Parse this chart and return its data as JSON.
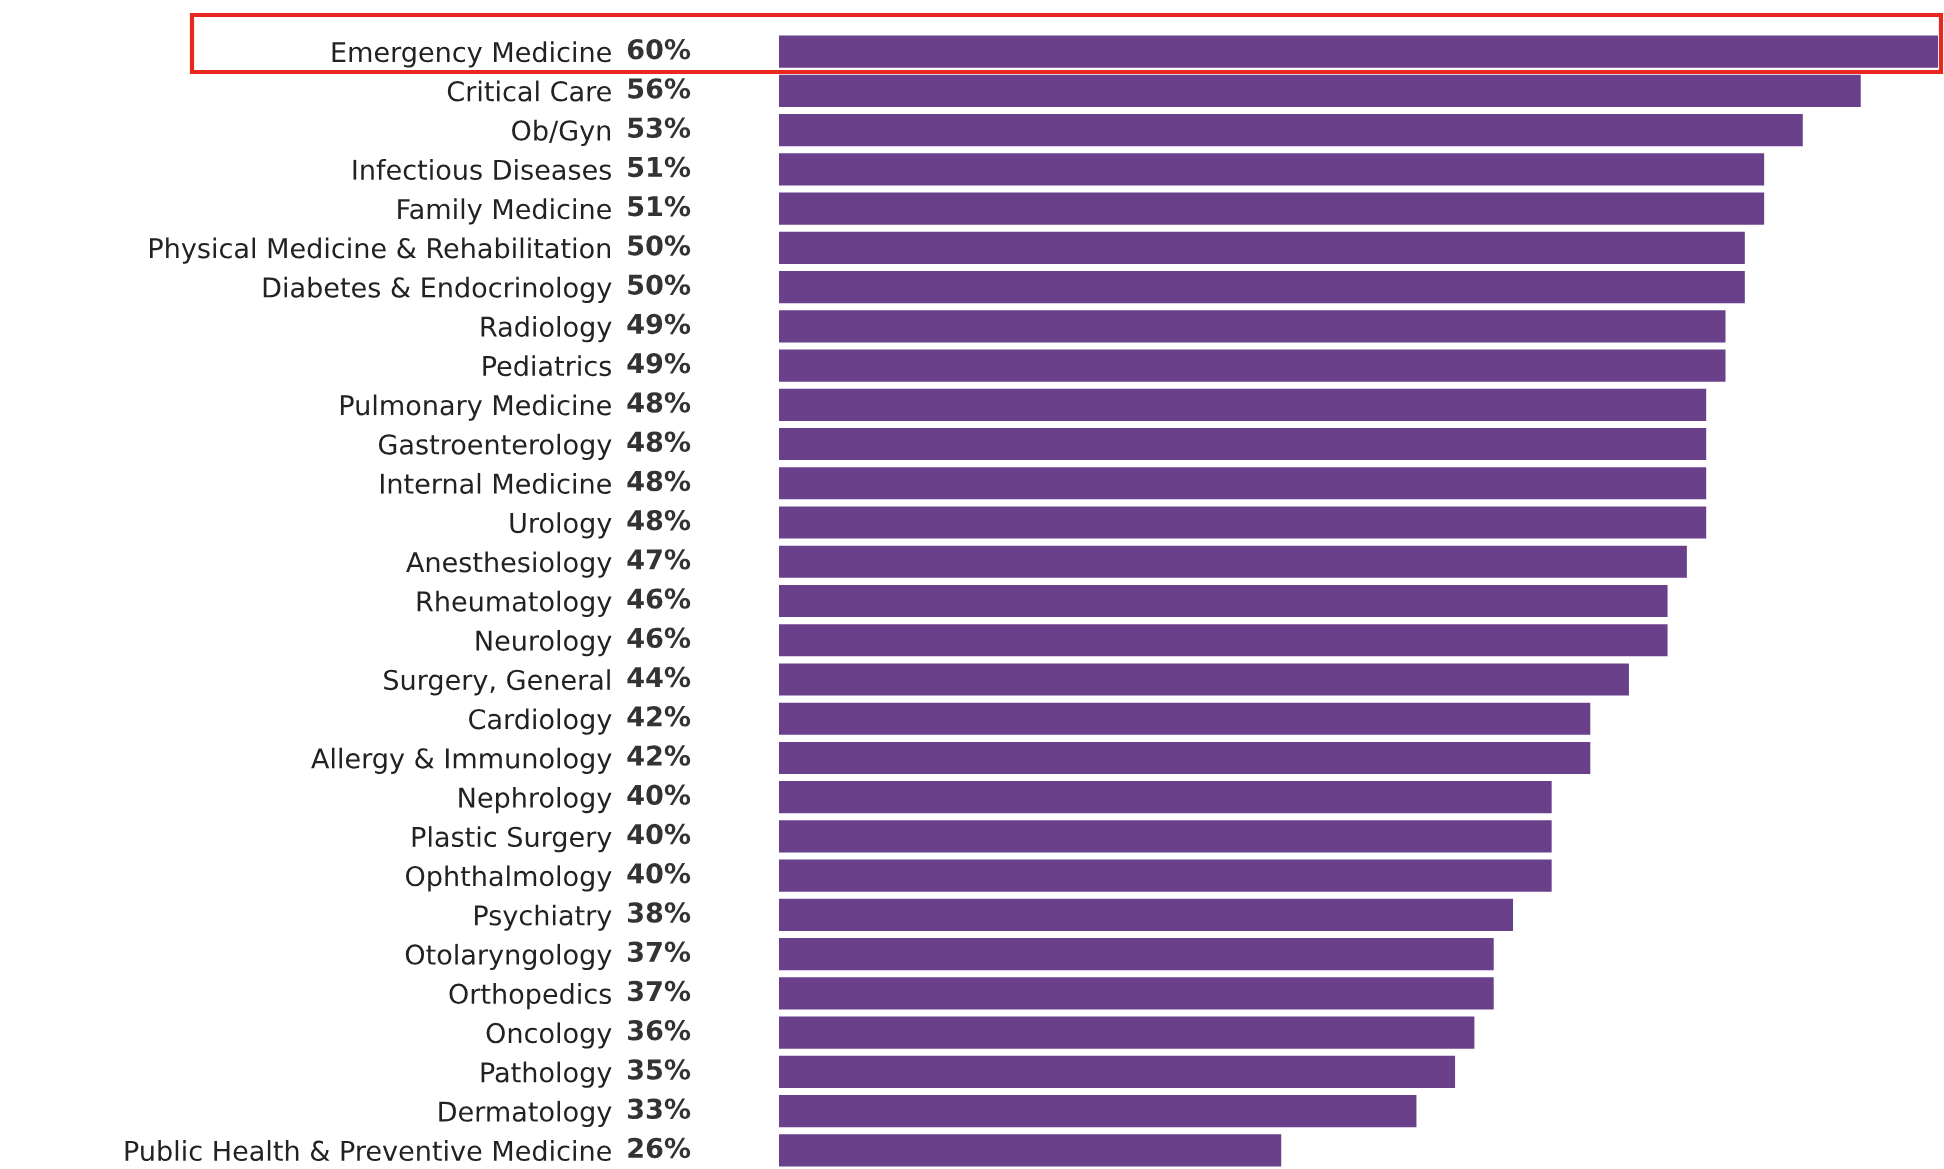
{
  "chart_data": {
    "type": "bar",
    "orientation": "horizontal",
    "categories": [
      "Emergency Medicine",
      "Critical Care",
      "Ob/Gyn",
      "Infectious Diseases",
      "Family Medicine",
      "Physical Medicine & Rehabilitation",
      "Diabetes & Endocrinology",
      "Radiology",
      "Pediatrics",
      "Pulmonary Medicine",
      "Gastroenterology",
      "Internal Medicine",
      "Urology",
      "Anesthesiology",
      "Rheumatology",
      "Neurology",
      "Surgery, General",
      "Cardiology",
      "Allergy & Immunology",
      "Nephrology",
      "Plastic Surgery",
      "Ophthalmology",
      "Psychiatry",
      "Otolaryngology",
      "Orthopedics",
      "Oncology",
      "Pathology",
      "Dermatology",
      "Public Health & Preventive Medicine"
    ],
    "values": [
      60,
      56,
      53,
      51,
      51,
      50,
      50,
      49,
      49,
      48,
      48,
      48,
      48,
      47,
      46,
      46,
      44,
      42,
      42,
      40,
      40,
      40,
      38,
      37,
      37,
      36,
      35,
      33,
      26
    ],
    "value_labels": [
      "60%",
      "56%",
      "53%",
      "51%",
      "51%",
      "50%",
      "50%",
      "49%",
      "49%",
      "48%",
      "48%",
      "48%",
      "48%",
      "47%",
      "46%",
      "46%",
      "44%",
      "42%",
      "42%",
      "40%",
      "40%",
      "40%",
      "38%",
      "37%",
      "37%",
      "36%",
      "35%",
      "33%",
      "26%"
    ],
    "color": "#6b408b",
    "xlim": [
      0,
      60
    ],
    "tick_labels": "y",
    "grid": false,
    "legend": false
  }
}
